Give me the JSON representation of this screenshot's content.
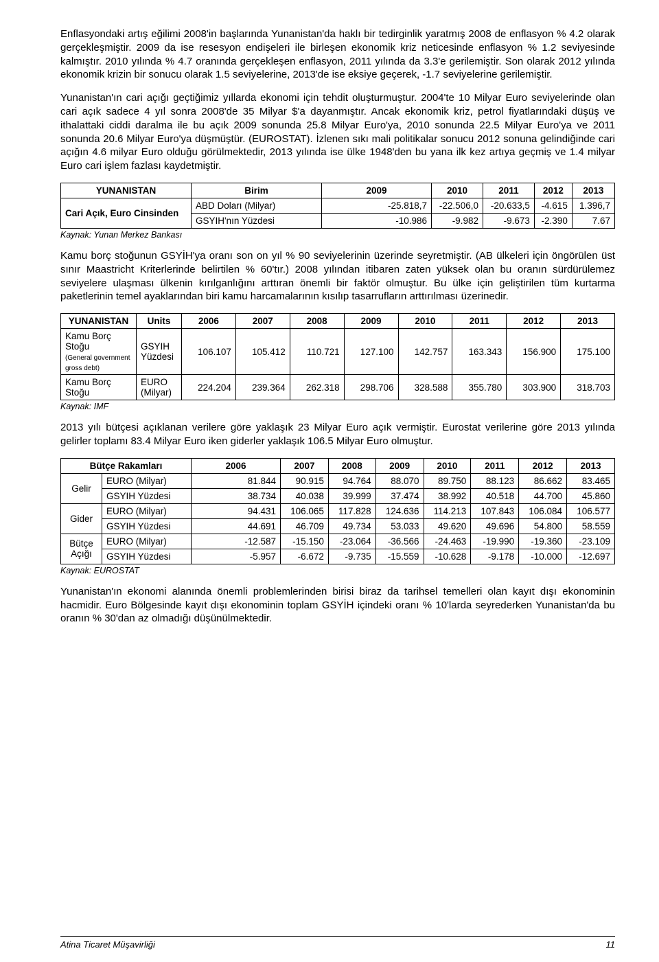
{
  "paragraphs": {
    "p1": "Enflasyondaki artış eğilimi 2008'in başlarında Yunanistan'da haklı bir tedirginlik yaratmış 2008 de enflasyon % 4.2 olarak gerçekleşmiştir. 2009 da ise resesyon endişeleri ile birleşen ekonomik kriz neticesinde enflasyon % 1.2 seviyesinde kalmıştır. 2010 yılında % 4.7 oranında gerçekleşen enflasyon, 2011 yılında da 3.3'e gerilemiştir. Son olarak 2012 yılında ekonomik krizin bir sonucu olarak 1.5 seviyelerine, 2013'de ise eksiye geçerek, -1.7 seviyelerine gerilemiştir.",
    "p2": "Yunanistan'ın cari açığı geçtiğimiz yıllarda ekonomi için tehdit oluşturmuştur. 2004'te 10 Milyar Euro seviyelerinde olan cari açık sadece 4 yıl sonra 2008'de 35 Milyar $'a dayanmıştır. Ancak ekonomik kriz, petrol fiyatlarındaki düşüş ve ithalattaki ciddi daralma ile bu açık 2009 sonunda 25.8 Milyar Euro'ya, 2010 sonunda 22.5 Milyar Euro'ya ve 2011 sonunda 20.6 Milyar Euro'ya düşmüştür. (EUROSTAT). İzlenen sıkı mali politikalar sonucu 2012 sonuna gelindiğinde cari açığın 4.6 milyar Euro olduğu görülmektedir, 2013 yılında ise ülke 1948'den bu yana ilk kez artıya geçmiş ve 1.4 milyar Euro cari işlem fazlası kaydetmiştir.",
    "p3": "Kamu borç stoğunun GSYİH'ya oranı son on yıl % 90 seviyelerinin üzerinde seyretmiştir. (AB ülkeleri için öngörülen üst sınır Maastricht Kriterlerinde belirtilen % 60'tır.) 2008 yılından itibaren zaten yüksek olan bu oranın sürdürülemez seviyelere ulaşması ülkenin kırılganlığını arttıran önemli bir faktör olmuştur. Bu ülke için geliştirilen tüm kurtarma paketlerinin temel ayaklarından biri kamu harcamalarının kısılıp tasarrufların arttırılması üzerinedir.",
    "p4": "2013 yılı bütçesi açıklanan verilere göre yaklaşık 23 Milyar Euro açık vermiştir. Eurostat verilerine göre 2013 yılında gelirler toplamı 83.4 Milyar Euro iken giderler yaklaşık 106.5 Milyar Euro olmuştur.",
    "p5": "Yunanistan'ın ekonomi alanında önemli problemlerinden birisi biraz da tarihsel temelleri olan kayıt dışı ekonominin hacmidir. Euro Bölgesinde kayıt dışı ekonominin toplam GSYİH içindeki oranı % 10'larda seyrederken Yunanistan'da bu oranın % 30'dan az olmadığı düşünülmektedir."
  },
  "t1": {
    "h": [
      "YUNANISTAN",
      "Birim",
      "2009",
      "2010",
      "2011",
      "2012",
      "2013"
    ],
    "rowlabel": "Cari Açık, Euro Cinsinden",
    "r1": [
      "ABD Doları (Milyar)",
      "-25.818,7",
      "-22.506,0",
      "-20.633,5",
      "-4.615",
      "1.396,7"
    ],
    "r2": [
      "GSYIH'nın Yüzdesi",
      "-10.986",
      "-9.982",
      "-9.673",
      "-2.390",
      "7.67"
    ],
    "src": "Kaynak: Yunan Merkez Bankası"
  },
  "t2": {
    "h": [
      "YUNANISTAN",
      "Units",
      "2006",
      "2007",
      "2008",
      "2009",
      "2010",
      "2011",
      "2012",
      "2013"
    ],
    "r1label": "Kamu Borç Stoğu",
    "r1sub": "(General government gross debt)",
    "r1unit": "GSYIH Yüzdesi",
    "r1": [
      "106.107",
      "105.412",
      "110.721",
      "127.100",
      "142.757",
      "163.343",
      "156.900",
      "175.100"
    ],
    "r2label": "Kamu Borç Stoğu",
    "r2unit": "EURO (Milyar)",
    "r2": [
      "224.204",
      "239.364",
      "262.318",
      "298.706",
      "328.588",
      "355.780",
      "303.900",
      "318.703"
    ],
    "src": "Kaynak: IMF"
  },
  "t3": {
    "h": [
      "Bütçe Rakamları",
      "2006",
      "2007",
      "2008",
      "2009",
      "2010",
      "2011",
      "2012",
      "2013"
    ],
    "g1": "Gelir",
    "g1r1": [
      "EURO (Milyar)",
      "81.844",
      "90.915",
      "94.764",
      "88.070",
      "89.750",
      "88.123",
      "86.662",
      "83.465"
    ],
    "g1r2": [
      "GSYIH Yüzdesi",
      "38.734",
      "40.038",
      "39.999",
      "37.474",
      "38.992",
      "40.518",
      "44.700",
      "45.860"
    ],
    "g2": "Gider",
    "g2r1": [
      "EURO (Milyar)",
      "94.431",
      "106.065",
      "117.828",
      "124.636",
      "114.213",
      "107.843",
      "106.084",
      "106.577"
    ],
    "g2r2": [
      "GSYIH Yüzdesi",
      "44.691",
      "46.709",
      "49.734",
      "53.033",
      "49.620",
      "49.696",
      "54.800",
      "58.559"
    ],
    "g3": "Bütçe Açığı",
    "g3r1": [
      "EURO (Milyar)",
      "-12.587",
      "-15.150",
      "-23.064",
      "-36.566",
      "-24.463",
      "-19.990",
      "-19.360",
      "-23.109"
    ],
    "g3r2": [
      "GSYIH Yüzdesi",
      "-5.957",
      "-6.672",
      "-9.735",
      "-15.559",
      "-10.628",
      "-9.178",
      "-10.000",
      "-12.697"
    ],
    "src": "Kaynak: EUROSTAT"
  },
  "footer": {
    "left": "Atina Ticaret Müşavirliği",
    "page": "11"
  }
}
